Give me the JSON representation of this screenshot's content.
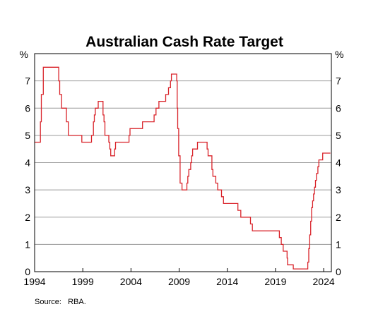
{
  "chart_data": {
    "type": "line",
    "title": "Australian Cash Rate Target",
    "y_unit": "%",
    "ylim": [
      0,
      8
    ],
    "y_ticks": [
      "0",
      "1",
      "2",
      "3",
      "4",
      "5",
      "6",
      "7"
    ],
    "xlim": [
      1994,
      2024.8
    ],
    "x_ticks": [
      "1994",
      "1999",
      "2004",
      "2009",
      "2014",
      "2019",
      "2024"
    ],
    "grid": true,
    "line_color": "#d9232a",
    "source": "Source:   RBA.",
    "series": [
      {
        "points": [
          [
            1994.0,
            4.75
          ],
          [
            1994.6,
            4.75
          ],
          [
            1994.6,
            5.5
          ],
          [
            1994.7,
            5.5
          ],
          [
            1994.7,
            6.5
          ],
          [
            1994.9,
            6.5
          ],
          [
            1994.9,
            7.5
          ],
          [
            1996.5,
            7.5
          ],
          [
            1996.5,
            7.0
          ],
          [
            1996.6,
            7.0
          ],
          [
            1996.6,
            6.5
          ],
          [
            1996.8,
            6.5
          ],
          [
            1996.8,
            6.0
          ],
          [
            1997.3,
            6.0
          ],
          [
            1997.3,
            5.5
          ],
          [
            1997.5,
            5.5
          ],
          [
            1997.5,
            5.0
          ],
          [
            1998.9,
            5.0
          ],
          [
            1998.9,
            4.75
          ],
          [
            1999.9,
            4.75
          ],
          [
            1999.9,
            5.0
          ],
          [
            2000.1,
            5.0
          ],
          [
            2000.1,
            5.5
          ],
          [
            2000.2,
            5.5
          ],
          [
            2000.2,
            5.75
          ],
          [
            2000.3,
            5.75
          ],
          [
            2000.3,
            6.0
          ],
          [
            2000.6,
            6.0
          ],
          [
            2000.6,
            6.25
          ],
          [
            2001.1,
            6.25
          ],
          [
            2001.1,
            5.75
          ],
          [
            2001.2,
            5.75
          ],
          [
            2001.2,
            5.5
          ],
          [
            2001.3,
            5.5
          ],
          [
            2001.3,
            5.0
          ],
          [
            2001.7,
            5.0
          ],
          [
            2001.7,
            4.75
          ],
          [
            2001.8,
            4.75
          ],
          [
            2001.8,
            4.5
          ],
          [
            2001.9,
            4.5
          ],
          [
            2001.9,
            4.25
          ],
          [
            2002.3,
            4.25
          ],
          [
            2002.3,
            4.5
          ],
          [
            2002.4,
            4.5
          ],
          [
            2002.4,
            4.75
          ],
          [
            2003.8,
            4.75
          ],
          [
            2003.8,
            5.0
          ],
          [
            2003.9,
            5.0
          ],
          [
            2003.9,
            5.25
          ],
          [
            2005.2,
            5.25
          ],
          [
            2005.2,
            5.5
          ],
          [
            2006.4,
            5.5
          ],
          [
            2006.4,
            5.75
          ],
          [
            2006.6,
            5.75
          ],
          [
            2006.6,
            6.0
          ],
          [
            2006.9,
            6.0
          ],
          [
            2006.9,
            6.25
          ],
          [
            2007.6,
            6.25
          ],
          [
            2007.6,
            6.5
          ],
          [
            2007.9,
            6.5
          ],
          [
            2007.9,
            6.75
          ],
          [
            2008.1,
            6.75
          ],
          [
            2008.1,
            7.0
          ],
          [
            2008.2,
            7.0
          ],
          [
            2008.2,
            7.25
          ],
          [
            2008.75,
            7.25
          ],
          [
            2008.75,
            7.0
          ],
          [
            2008.8,
            7.0
          ],
          [
            2008.8,
            6.0
          ],
          [
            2008.85,
            6.0
          ],
          [
            2008.85,
            5.25
          ],
          [
            2008.95,
            5.25
          ],
          [
            2008.95,
            4.25
          ],
          [
            2009.1,
            4.25
          ],
          [
            2009.1,
            3.25
          ],
          [
            2009.3,
            3.25
          ],
          [
            2009.3,
            3.0
          ],
          [
            2009.8,
            3.0
          ],
          [
            2009.8,
            3.25
          ],
          [
            2009.9,
            3.25
          ],
          [
            2009.9,
            3.5
          ],
          [
            2010.0,
            3.5
          ],
          [
            2010.0,
            3.75
          ],
          [
            2010.2,
            3.75
          ],
          [
            2010.2,
            4.0
          ],
          [
            2010.3,
            4.0
          ],
          [
            2010.3,
            4.25
          ],
          [
            2010.4,
            4.25
          ],
          [
            2010.4,
            4.5
          ],
          [
            2010.9,
            4.5
          ],
          [
            2010.9,
            4.75
          ],
          [
            2011.9,
            4.75
          ],
          [
            2011.9,
            4.5
          ],
          [
            2012.0,
            4.5
          ],
          [
            2012.0,
            4.25
          ],
          [
            2012.4,
            4.25
          ],
          [
            2012.4,
            3.75
          ],
          [
            2012.5,
            3.75
          ],
          [
            2012.5,
            3.5
          ],
          [
            2012.8,
            3.5
          ],
          [
            2012.8,
            3.25
          ],
          [
            2013.0,
            3.25
          ],
          [
            2013.0,
            3.0
          ],
          [
            2013.4,
            3.0
          ],
          [
            2013.4,
            2.75
          ],
          [
            2013.6,
            2.75
          ],
          [
            2013.6,
            2.5
          ],
          [
            2015.1,
            2.5
          ],
          [
            2015.1,
            2.25
          ],
          [
            2015.4,
            2.25
          ],
          [
            2015.4,
            2.0
          ],
          [
            2016.4,
            2.0
          ],
          [
            2016.4,
            1.75
          ],
          [
            2016.6,
            1.75
          ],
          [
            2016.6,
            1.5
          ],
          [
            2019.4,
            1.5
          ],
          [
            2019.4,
            1.25
          ],
          [
            2019.6,
            1.25
          ],
          [
            2019.6,
            1.0
          ],
          [
            2019.8,
            1.0
          ],
          [
            2019.8,
            0.75
          ],
          [
            2020.2,
            0.75
          ],
          [
            2020.2,
            0.5
          ],
          [
            2020.25,
            0.5
          ],
          [
            2020.25,
            0.25
          ],
          [
            2020.85,
            0.25
          ],
          [
            2020.85,
            0.1
          ],
          [
            2022.35,
            0.1
          ],
          [
            2022.35,
            0.35
          ],
          [
            2022.45,
            0.35
          ],
          [
            2022.45,
            0.85
          ],
          [
            2022.55,
            0.85
          ],
          [
            2022.55,
            1.35
          ],
          [
            2022.65,
            1.35
          ],
          [
            2022.65,
            1.85
          ],
          [
            2022.75,
            1.85
          ],
          [
            2022.75,
            2.35
          ],
          [
            2022.85,
            2.35
          ],
          [
            2022.85,
            2.6
          ],
          [
            2022.95,
            2.6
          ],
          [
            2022.95,
            2.85
          ],
          [
            2023.05,
            2.85
          ],
          [
            2023.05,
            3.1
          ],
          [
            2023.15,
            3.1
          ],
          [
            2023.15,
            3.35
          ],
          [
            2023.25,
            3.35
          ],
          [
            2023.25,
            3.6
          ],
          [
            2023.4,
            3.6
          ],
          [
            2023.4,
            3.85
          ],
          [
            2023.5,
            3.85
          ],
          [
            2023.5,
            4.1
          ],
          [
            2023.9,
            4.1
          ],
          [
            2023.9,
            4.35
          ],
          [
            2024.7,
            4.35
          ]
        ]
      }
    ]
  }
}
